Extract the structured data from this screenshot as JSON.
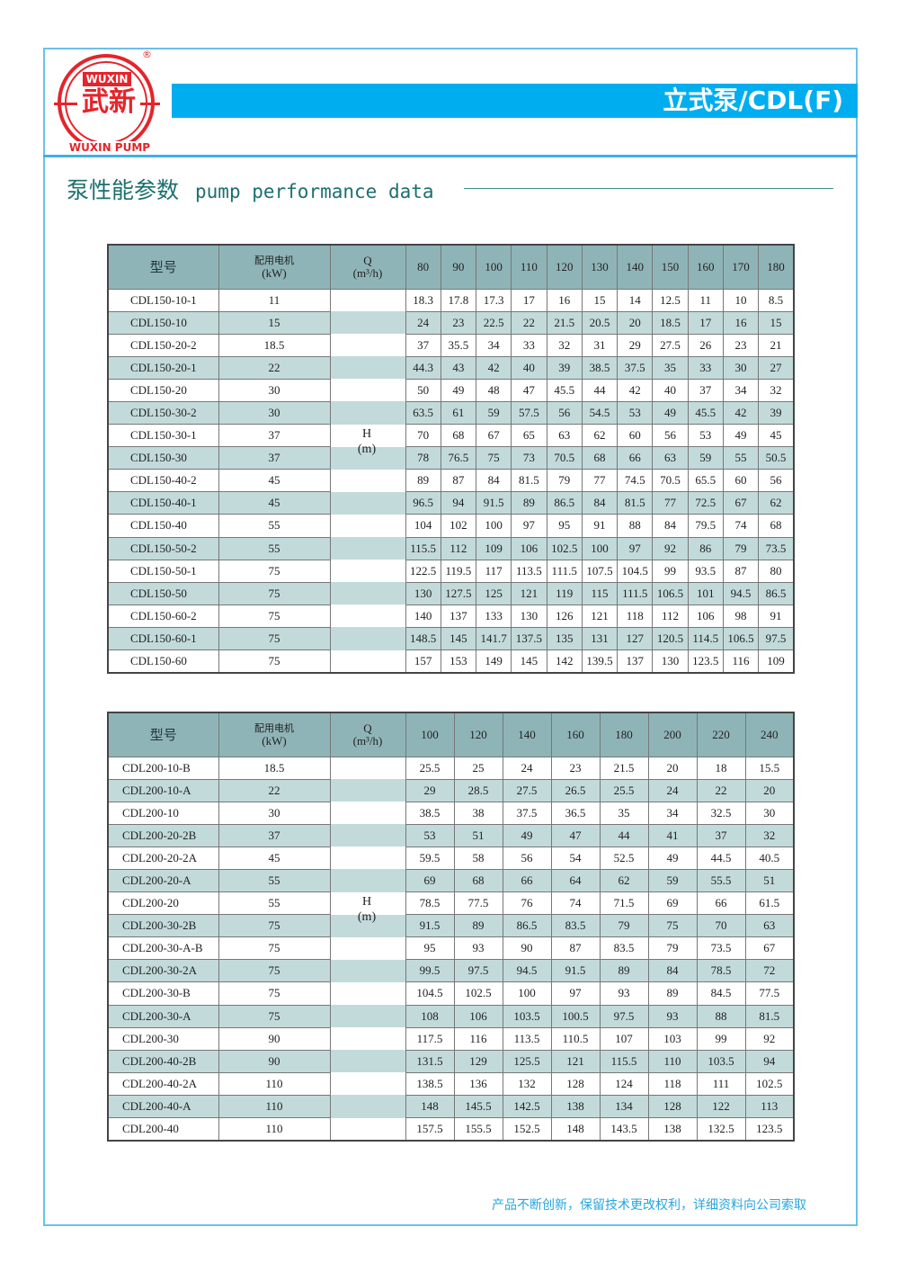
{
  "brand": {
    "logo_top": "WUXIN",
    "logo_cn": "武新",
    "logo_bottom": "WUXIN PUMP",
    "registered": "®"
  },
  "header": {
    "title": "立式泵/CDL(F)"
  },
  "section": {
    "title_cn": "泵性能参数",
    "title_en": "pump performance data"
  },
  "colors": {
    "accent": "#00aeef",
    "header_cell": "#8fb4b7",
    "stripe": "#c3dada",
    "logo": "#e5242b"
  },
  "tables": [
    {
      "col_model": "型号",
      "col_motor": "配用电机",
      "col_motor_unit": "(kW)",
      "col_q": "Q",
      "col_q_unit": "(m³/h)",
      "h_label": "H",
      "h_unit": "(m)",
      "flows": [
        "80",
        "90",
        "100",
        "110",
        "120",
        "130",
        "140",
        "150",
        "160",
        "170",
        "180"
      ],
      "rows": [
        {
          "model": "CDL150-10-1",
          "kw": "11",
          "h": [
            "18.3",
            "17.8",
            "17.3",
            "17",
            "16",
            "15",
            "14",
            "12.5",
            "11",
            "10",
            "8.5"
          ]
        },
        {
          "model": "CDL150-10",
          "kw": "15",
          "h": [
            "24",
            "23",
            "22.5",
            "22",
            "21.5",
            "20.5",
            "20",
            "18.5",
            "17",
            "16",
            "15"
          ]
        },
        {
          "model": "CDL150-20-2",
          "kw": "18.5",
          "h": [
            "37",
            "35.5",
            "34",
            "33",
            "32",
            "31",
            "29",
            "27.5",
            "26",
            "23",
            "21"
          ]
        },
        {
          "model": "CDL150-20-1",
          "kw": "22",
          "h": [
            "44.3",
            "43",
            "42",
            "40",
            "39",
            "38.5",
            "37.5",
            "35",
            "33",
            "30",
            "27"
          ]
        },
        {
          "model": "CDL150-20",
          "kw": "30",
          "h": [
            "50",
            "49",
            "48",
            "47",
            "45.5",
            "44",
            "42",
            "40",
            "37",
            "34",
            "32"
          ]
        },
        {
          "model": "CDL150-30-2",
          "kw": "30",
          "h": [
            "63.5",
            "61",
            "59",
            "57.5",
            "56",
            "54.5",
            "53",
            "49",
            "45.5",
            "42",
            "39"
          ]
        },
        {
          "model": "CDL150-30-1",
          "kw": "37",
          "h": [
            "70",
            "68",
            "67",
            "65",
            "63",
            "62",
            "60",
            "56",
            "53",
            "49",
            "45"
          ]
        },
        {
          "model": "CDL150-30",
          "kw": "37",
          "h": [
            "78",
            "76.5",
            "75",
            "73",
            "70.5",
            "68",
            "66",
            "63",
            "59",
            "55",
            "50.5"
          ]
        },
        {
          "model": "CDL150-40-2",
          "kw": "45",
          "h": [
            "89",
            "87",
            "84",
            "81.5",
            "79",
            "77",
            "74.5",
            "70.5",
            "65.5",
            "60",
            "56"
          ]
        },
        {
          "model": "CDL150-40-1",
          "kw": "45",
          "h": [
            "96.5",
            "94",
            "91.5",
            "89",
            "86.5",
            "84",
            "81.5",
            "77",
            "72.5",
            "67",
            "62"
          ]
        },
        {
          "model": "CDL150-40",
          "kw": "55",
          "h": [
            "104",
            "102",
            "100",
            "97",
            "95",
            "91",
            "88",
            "84",
            "79.5",
            "74",
            "68"
          ]
        },
        {
          "model": "CDL150-50-2",
          "kw": "55",
          "h": [
            "115.5",
            "112",
            "109",
            "106",
            "102.5",
            "100",
            "97",
            "92",
            "86",
            "79",
            "73.5"
          ]
        },
        {
          "model": "CDL150-50-1",
          "kw": "75",
          "h": [
            "122.5",
            "119.5",
            "117",
            "113.5",
            "111.5",
            "107.5",
            "104.5",
            "99",
            "93.5",
            "87",
            "80"
          ]
        },
        {
          "model": "CDL150-50",
          "kw": "75",
          "h": [
            "130",
            "127.5",
            "125",
            "121",
            "119",
            "115",
            "111.5",
            "106.5",
            "101",
            "94.5",
            "86.5"
          ]
        },
        {
          "model": "CDL150-60-2",
          "kw": "75",
          "h": [
            "140",
            "137",
            "133",
            "130",
            "126",
            "121",
            "118",
            "112",
            "106",
            "98",
            "91"
          ]
        },
        {
          "model": "CDL150-60-1",
          "kw": "75",
          "h": [
            "148.5",
            "145",
            "141.7",
            "137.5",
            "135",
            "131",
            "127",
            "120.5",
            "114.5",
            "106.5",
            "97.5"
          ]
        },
        {
          "model": "CDL150-60",
          "kw": "75",
          "h": [
            "157",
            "153",
            "149",
            "145",
            "142",
            "139.5",
            "137",
            "130",
            "123.5",
            "116",
            "109"
          ]
        }
      ]
    },
    {
      "col_model": "型号",
      "col_motor": "配用电机",
      "col_motor_unit": "(kW)",
      "col_q": "Q",
      "col_q_unit": "(m³/h)",
      "h_label": "H",
      "h_unit": "(m)",
      "flows": [
        "100",
        "120",
        "140",
        "160",
        "180",
        "200",
        "220",
        "240"
      ],
      "rows": [
        {
          "model": "CDL200-10-B",
          "kw": "18.5",
          "h": [
            "25.5",
            "25",
            "24",
            "23",
            "21.5",
            "20",
            "18",
            "15.5"
          ]
        },
        {
          "model": "CDL200-10-A",
          "kw": "22",
          "h": [
            "29",
            "28.5",
            "27.5",
            "26.5",
            "25.5",
            "24",
            "22",
            "20"
          ]
        },
        {
          "model": "CDL200-10",
          "kw": "30",
          "h": [
            "38.5",
            "38",
            "37.5",
            "36.5",
            "35",
            "34",
            "32.5",
            "30"
          ]
        },
        {
          "model": "CDL200-20-2B",
          "kw": "37",
          "h": [
            "53",
            "51",
            "49",
            "47",
            "44",
            "41",
            "37",
            "32"
          ]
        },
        {
          "model": "CDL200-20-2A",
          "kw": "45",
          "h": [
            "59.5",
            "58",
            "56",
            "54",
            "52.5",
            "49",
            "44.5",
            "40.5"
          ]
        },
        {
          "model": "CDL200-20-A",
          "kw": "55",
          "h": [
            "69",
            "68",
            "66",
            "64",
            "62",
            "59",
            "55.5",
            "51"
          ]
        },
        {
          "model": "CDL200-20",
          "kw": "55",
          "h": [
            "78.5",
            "77.5",
            "76",
            "74",
            "71.5",
            "69",
            "66",
            "61.5"
          ]
        },
        {
          "model": "CDL200-30-2B",
          "kw": "75",
          "h": [
            "91.5",
            "89",
            "86.5",
            "83.5",
            "79",
            "75",
            "70",
            "63"
          ]
        },
        {
          "model": "CDL200-30-A-B",
          "kw": "75",
          "h": [
            "95",
            "93",
            "90",
            "87",
            "83.5",
            "79",
            "73.5",
            "67"
          ]
        },
        {
          "model": "CDL200-30-2A",
          "kw": "75",
          "h": [
            "99.5",
            "97.5",
            "94.5",
            "91.5",
            "89",
            "84",
            "78.5",
            "72"
          ]
        },
        {
          "model": "CDL200-30-B",
          "kw": "75",
          "h": [
            "104.5",
            "102.5",
            "100",
            "97",
            "93",
            "89",
            "84.5",
            "77.5"
          ]
        },
        {
          "model": "CDL200-30-A",
          "kw": "75",
          "h": [
            "108",
            "106",
            "103.5",
            "100.5",
            "97.5",
            "93",
            "88",
            "81.5"
          ]
        },
        {
          "model": "CDL200-30",
          "kw": "90",
          "h": [
            "117.5",
            "116",
            "113.5",
            "110.5",
            "107",
            "103",
            "99",
            "92"
          ]
        },
        {
          "model": "CDL200-40-2B",
          "kw": "90",
          "h": [
            "131.5",
            "129",
            "125.5",
            "121",
            "115.5",
            "110",
            "103.5",
            "94"
          ]
        },
        {
          "model": "CDL200-40-2A",
          "kw": "110",
          "h": [
            "138.5",
            "136",
            "132",
            "128",
            "124",
            "118",
            "111",
            "102.5"
          ]
        },
        {
          "model": "CDL200-40-A",
          "kw": "110",
          "h": [
            "148",
            "145.5",
            "142.5",
            "138",
            "134",
            "128",
            "122",
            "113"
          ]
        },
        {
          "model": "CDL200-40",
          "kw": "110",
          "h": [
            "157.5",
            "155.5",
            "152.5",
            "148",
            "143.5",
            "138",
            "132.5",
            "123.5"
          ]
        }
      ]
    }
  ],
  "footer": {
    "note": "产品不断创新，保留技术更改权利，详细资料向公司索取"
  }
}
